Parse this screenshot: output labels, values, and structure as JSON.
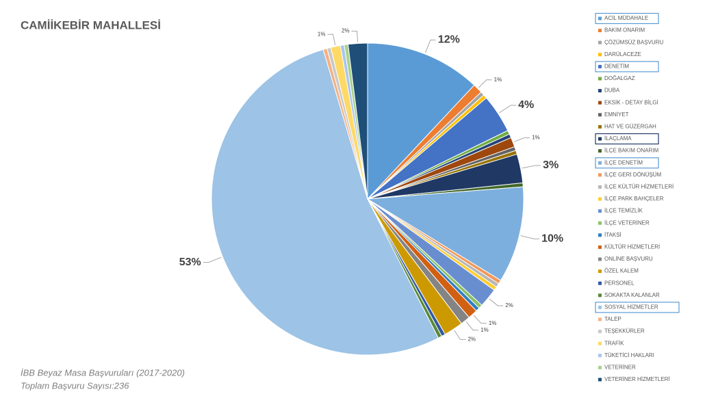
{
  "chart_data": {
    "type": "pie",
    "title": "CAMİİKEBİR MAHALLESİ",
    "notes": [
      "İBB Beyaz Masa Başvuruları (2017-2020)",
      "Toplam Başvuru Sayısı:236"
    ],
    "categories": [
      "ACİL MÜDAHALE",
      "BAKIM ONARIM",
      "ÇÖZÜMSÜZ BAŞVURU",
      "DARÜLACEZE",
      "DENETİM",
      "DOĞALGAZ",
      "DUBA",
      "EKSİK - DETAY BİLGİ",
      "EMNİYET",
      "HAT VE GÜZERGAH",
      "İLAÇLAMA",
      "İLÇE BAKIM ONARIM",
      "İLÇE DENETİM",
      "İLÇE GERİ DÖNÜŞÜM",
      "İLÇE KÜLTÜR HİZMETLERİ",
      "İLÇE PARK BAHÇELER",
      "İLÇE TEMİZLİK",
      "İLÇE VETERİNER",
      "İTAKSİ",
      "KÜLTÜR HİZMETLERİ",
      "ONLİNE BAŞVURU",
      "ÖZEL KALEM",
      "PERSONEL",
      "SOKAKTA KALANLAR",
      "SOSYAL HİZMETLER",
      "TALEP",
      "TEŞEKKÜRLER",
      "TRAFİK",
      "TÜKETİCİ HAKLARI",
      "VETERİNER",
      "VETERİNER HİZMETLERİ"
    ],
    "values": [
      12,
      1,
      0.4,
      0.4,
      4,
      0.4,
      0.4,
      1,
      0.4,
      0.4,
      3,
      0.4,
      10,
      0.4,
      0.4,
      0.4,
      2,
      0.4,
      0.4,
      1,
      1,
      2,
      0.4,
      0.4,
      53,
      0.4,
      0.4,
      1,
      0.4,
      0.4,
      2
    ],
    "value_labels": [
      "12%",
      "1%",
      null,
      null,
      "4%",
      null,
      null,
      "1%",
      null,
      null,
      "3%",
      null,
      "10%",
      null,
      null,
      null,
      "2%",
      null,
      null,
      "1%",
      "1%",
      "2%",
      null,
      null,
      "53%",
      null,
      null,
      "1%",
      null,
      null,
      "2%"
    ],
    "colors": [
      "#5b9bd5",
      "#ed7d31",
      "#a5a5a5",
      "#ffc000",
      "#4472c4",
      "#70ad47",
      "#264478",
      "#9e480e",
      "#636363",
      "#997300",
      "#203864",
      "#43682b",
      "#7cafdd",
      "#f1975a",
      "#b7b7b7",
      "#ffcd33",
      "#698ed0",
      "#8cc168",
      "#327dc2",
      "#d26012",
      "#848484",
      "#cc9a00",
      "#335aa1",
      "#5a8a39",
      "#9dc3e6",
      "#f4b183",
      "#c9c9c9",
      "#ffd966",
      "#a9c6ea",
      "#a9d18e",
      "#1f4e79"
    ],
    "legend": "right"
  }
}
